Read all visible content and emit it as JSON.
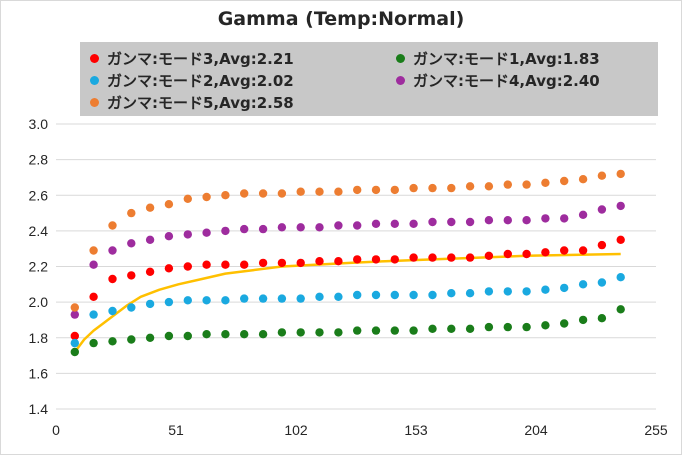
{
  "chart_data": {
    "type": "scatter",
    "title": "Gamma (Temp:Normal)",
    "xlabel": "",
    "ylabel": "",
    "xlim": [
      0,
      255
    ],
    "ylim": [
      1.4,
      3.0
    ],
    "x_ticks": [
      "0",
      "51",
      "102",
      "153",
      "204",
      "255"
    ],
    "y_ticks": [
      "1.4",
      "1.6",
      "1.8",
      "2.0",
      "2.2",
      "2.4",
      "2.6",
      "2.8",
      "3.0"
    ],
    "grid": "horizontal",
    "legend_position": "top",
    "x": [
      8,
      16,
      24,
      32,
      40,
      48,
      56,
      64,
      72,
      80,
      88,
      96,
      104,
      112,
      120,
      128,
      136,
      144,
      152,
      160,
      168,
      176,
      184,
      192,
      200,
      208,
      216,
      224,
      232,
      240
    ],
    "series": [
      {
        "name": "ガンマ:モード3,Avg:2.21",
        "color": "#ff0000",
        "values": [
          1.81,
          2.03,
          2.13,
          2.15,
          2.17,
          2.19,
          2.2,
          2.21,
          2.21,
          2.21,
          2.22,
          2.22,
          2.22,
          2.23,
          2.23,
          2.24,
          2.24,
          2.24,
          2.25,
          2.25,
          2.25,
          2.25,
          2.26,
          2.27,
          2.27,
          2.28,
          2.29,
          2.29,
          2.32,
          2.35
        ]
      },
      {
        "name": "ガンマ:モード1,Avg:1.83",
        "color": "#1a7d1a",
        "values": [
          1.72,
          1.77,
          1.78,
          1.79,
          1.8,
          1.81,
          1.81,
          1.82,
          1.82,
          1.82,
          1.82,
          1.83,
          1.83,
          1.83,
          1.83,
          1.84,
          1.84,
          1.84,
          1.84,
          1.85,
          1.85,
          1.85,
          1.86,
          1.86,
          1.86,
          1.87,
          1.88,
          1.9,
          1.91,
          1.96
        ]
      },
      {
        "name": "ガンマ:モード2,Avg:2.02",
        "color": "#1aa9e0",
        "values": [
          1.77,
          1.93,
          1.95,
          1.97,
          1.99,
          2.0,
          2.01,
          2.01,
          2.01,
          2.02,
          2.02,
          2.02,
          2.02,
          2.03,
          2.03,
          2.04,
          2.04,
          2.04,
          2.04,
          2.04,
          2.05,
          2.05,
          2.06,
          2.06,
          2.06,
          2.07,
          2.08,
          2.1,
          2.11,
          2.14
        ]
      },
      {
        "name": "ガンマ:モード4,Avg:2.40",
        "color": "#9e2c9e",
        "values": [
          1.93,
          2.21,
          2.29,
          2.33,
          2.35,
          2.37,
          2.38,
          2.39,
          2.4,
          2.41,
          2.41,
          2.42,
          2.42,
          2.42,
          2.43,
          2.43,
          2.44,
          2.44,
          2.44,
          2.45,
          2.45,
          2.45,
          2.46,
          2.46,
          2.46,
          2.47,
          2.47,
          2.49,
          2.52,
          2.54
        ]
      },
      {
        "name": "ガンマ:モード5,Avg:2.58",
        "color": "#ed7d31",
        "values": [
          1.97,
          2.29,
          2.43,
          2.5,
          2.53,
          2.55,
          2.58,
          2.59,
          2.6,
          2.61,
          2.61,
          2.61,
          2.62,
          2.62,
          2.62,
          2.63,
          2.63,
          2.63,
          2.64,
          2.64,
          2.64,
          2.65,
          2.65,
          2.66,
          2.66,
          2.67,
          2.68,
          2.69,
          2.71,
          2.72
        ]
      }
    ],
    "reference_curve": {
      "color": "#ffc000",
      "x": [
        8,
        12,
        16,
        20,
        24,
        30,
        36,
        44,
        52,
        62,
        72,
        84,
        96,
        110,
        125,
        140,
        160,
        180,
        200,
        220,
        240
      ],
      "values": [
        1.72,
        1.79,
        1.84,
        1.88,
        1.92,
        1.98,
        2.03,
        2.07,
        2.1,
        2.13,
        2.16,
        2.18,
        2.2,
        2.21,
        2.22,
        2.23,
        2.24,
        2.25,
        2.26,
        2.265,
        2.27
      ]
    }
  },
  "legend": {
    "items": [
      {
        "label": "ガンマ:モード3,Avg:2.21",
        "color": "#ff0000"
      },
      {
        "label": "ガンマ:モード1,Avg:1.83",
        "color": "#1a7d1a"
      },
      {
        "label": "ガンマ:モード2,Avg:2.02",
        "color": "#1aa9e0"
      },
      {
        "label": "ガンマ:モード4,Avg:2.40",
        "color": "#9e2c9e"
      },
      {
        "label": "ガンマ:モード5,Avg:2.58",
        "color": "#ed7d31"
      }
    ]
  }
}
